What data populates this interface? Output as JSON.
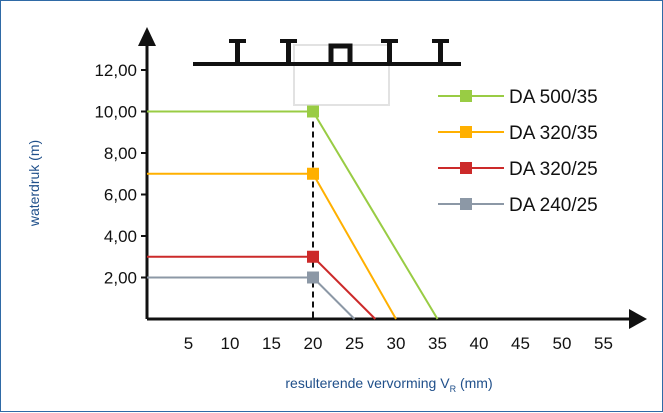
{
  "chart_data": {
    "type": "line",
    "xlabel": "resulterende vervorming V",
    "xlabel_sub": "R",
    "xlabel_unit": " (mm)",
    "ylabel": "waterdruk (m)",
    "xlim": [
      0,
      60
    ],
    "ylim": [
      0,
      14
    ],
    "x_ticks": [
      5,
      10,
      15,
      20,
      25,
      30,
      35,
      40,
      45,
      50,
      55
    ],
    "y_ticks": [
      2,
      4,
      6,
      8,
      10,
      12
    ],
    "y_tick_labels": [
      "2,00",
      "4,00",
      "6,00",
      "8,00",
      "10,00",
      "12,00"
    ],
    "grid": false,
    "legend_position": "top-right",
    "reference_line_x": 20,
    "series": [
      {
        "name": "DA 500/35",
        "color": "#99cc44",
        "points": [
          [
            0,
            10
          ],
          [
            20,
            10
          ],
          [
            35,
            0
          ]
        ]
      },
      {
        "name": "DA 320/35",
        "color": "#ffb000",
        "points": [
          [
            0,
            7
          ],
          [
            20,
            7
          ],
          [
            30,
            0
          ]
        ]
      },
      {
        "name": "DA 320/25",
        "color": "#cc2a2a",
        "points": [
          [
            0,
            3
          ],
          [
            20,
            3
          ],
          [
            27.5,
            0
          ]
        ]
      },
      {
        "name": "DA 240/25",
        "color": "#8c98a6",
        "points": [
          [
            0,
            2
          ],
          [
            20,
            2
          ],
          [
            25,
            0
          ]
        ]
      }
    ]
  }
}
